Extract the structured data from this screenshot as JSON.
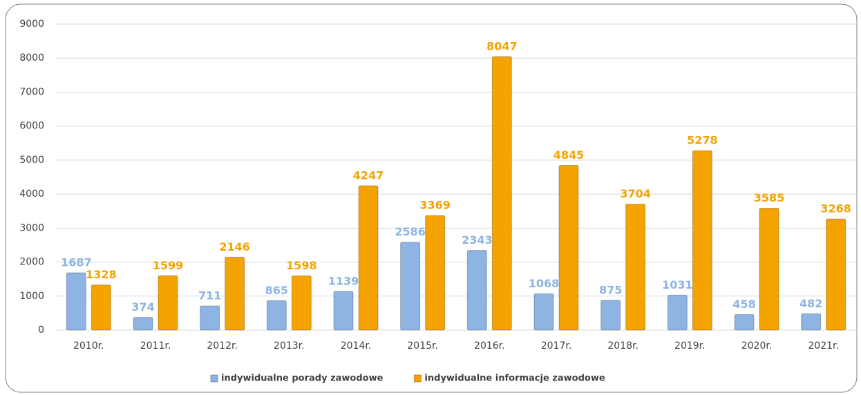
{
  "chart_data": {
    "type": "bar",
    "categories": [
      "2010r.",
      "2011r.",
      "2012r.",
      "2013r.",
      "2014r.",
      "2015r.",
      "2016r.",
      "2017r.",
      "2018r.",
      "2019r.",
      "2020r.",
      "2021r."
    ],
    "series": [
      {
        "name": "indywidualne porady zawodowe",
        "color": "#8db4e2",
        "values": [
          1687,
          374,
          711,
          865,
          1139,
          2586,
          2343,
          1068,
          875,
          1031,
          458,
          482
        ]
      },
      {
        "name": "indywidualne informacje zawodowe",
        "color": "#f5a300",
        "values": [
          1328,
          1599,
          2146,
          1598,
          4247,
          3369,
          8047,
          4845,
          3704,
          5278,
          3585,
          3268
        ]
      }
    ],
    "ylim": [
      0,
      9000
    ],
    "yticks": [
      0,
      1000,
      2000,
      3000,
      4000,
      5000,
      6000,
      7000,
      8000,
      9000
    ],
    "grid": true,
    "legend": "bottom"
  }
}
